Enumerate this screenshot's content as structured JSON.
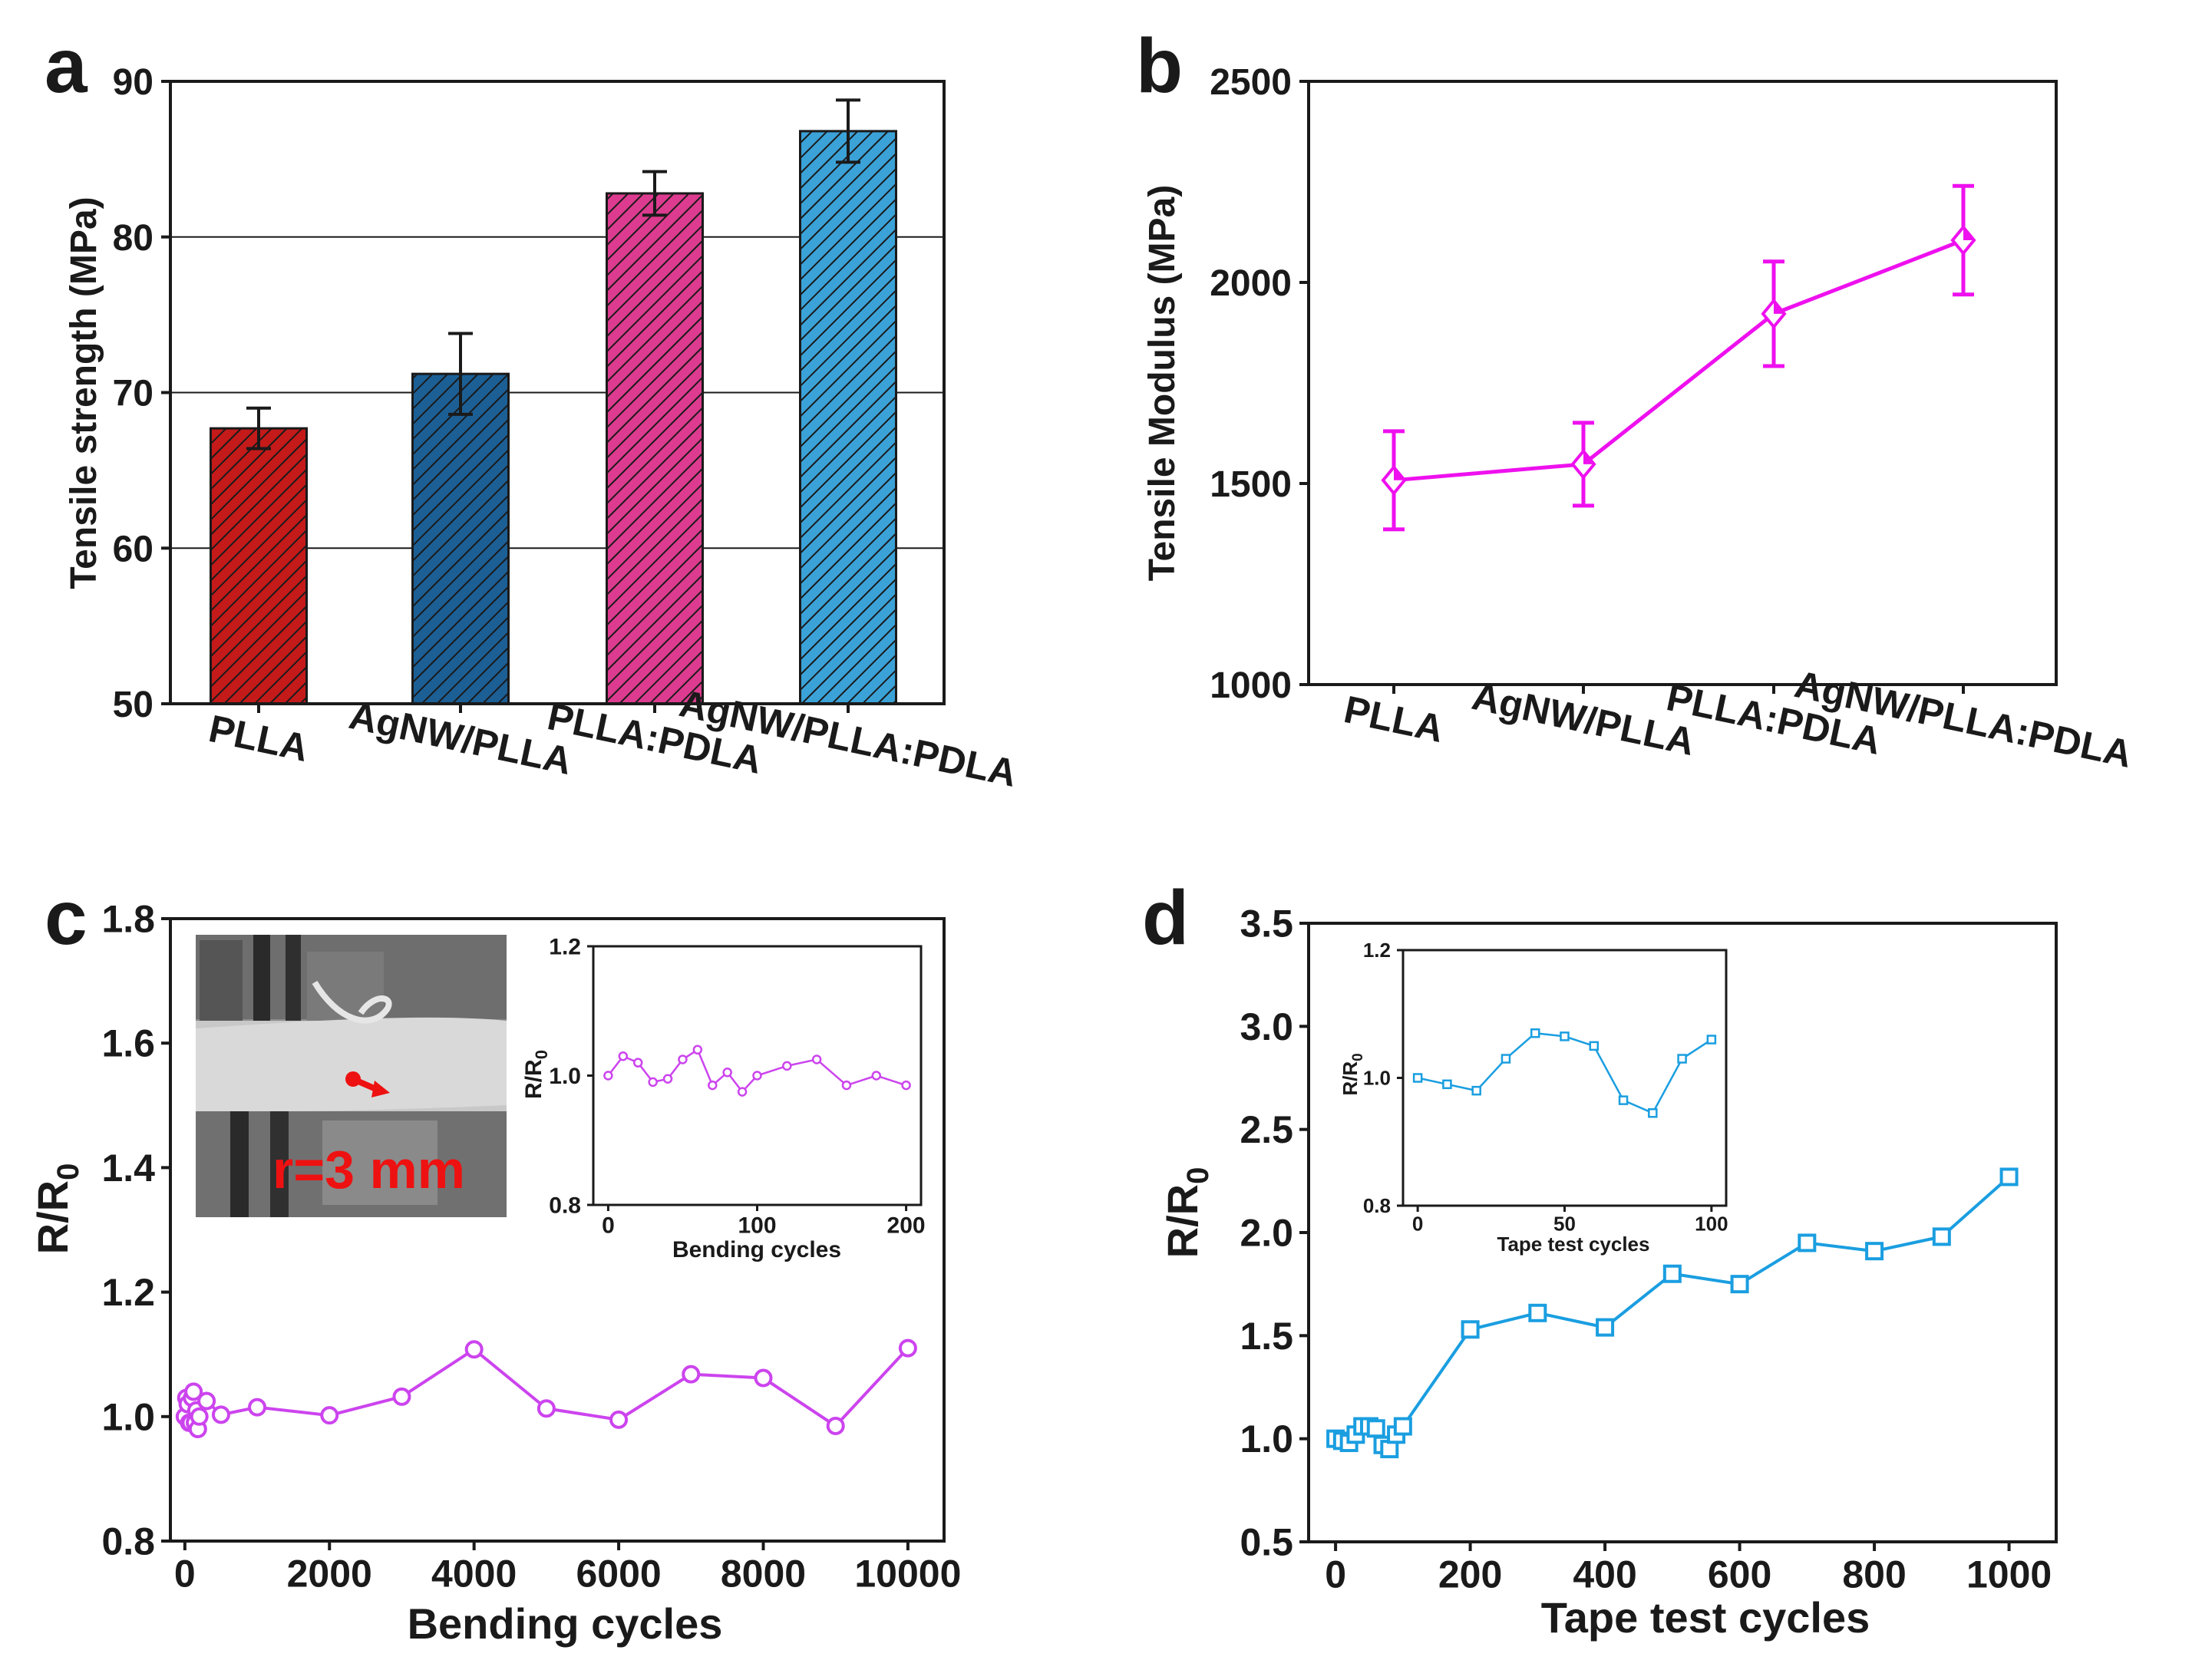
{
  "chart_data": [
    {
      "panel": "a",
      "type": "bar",
      "categories": [
        "PLLA",
        "AgNW/PLLA",
        "PLLA:PDLA",
        "AgNW/PLLA:PDLA"
      ],
      "values": [
        67.7,
        71.2,
        82.8,
        86.8
      ],
      "errors": [
        1.3,
        2.6,
        1.4,
        2.0
      ],
      "colors": [
        "#c41a1a",
        "#1c5f95",
        "#dd3b8f",
        "#3ba2d8"
      ],
      "hatch": "diagonal",
      "xlabel": "",
      "ylabel": "Tensile strength (MPa)",
      "ylim": [
        50,
        90
      ],
      "yticks": [
        50,
        60,
        70,
        80,
        90
      ],
      "grid": true
    },
    {
      "panel": "b",
      "type": "line",
      "categories": [
        "PLLA",
        "AgNW/PLLA",
        "PLLA:PDLA",
        "AgNW/PLLA:PDLA"
      ],
      "values": [
        1508,
        1548,
        1922,
        2105
      ],
      "errors": [
        122,
        103,
        130,
        135
      ],
      "color": "#ee10ee",
      "marker": "diamond",
      "xlabel": "",
      "ylabel": "Tensile Modulus (MPa)",
      "ylim": [
        1000,
        2500
      ],
      "yticks": [
        1000,
        1500,
        2000,
        2500
      ],
      "grid": false
    },
    {
      "panel": "c",
      "type": "line",
      "x": [
        0,
        20,
        40,
        60,
        80,
        100,
        120,
        140,
        160,
        180,
        200,
        300,
        500,
        1000,
        2000,
        3000,
        4000,
        5000,
        6000,
        7000,
        8000,
        9000,
        10000
      ],
      "y": [
        1.0,
        1.03,
        1.02,
        0.99,
        0.99,
        1.03,
        1.04,
        0.99,
        1.01,
        0.98,
        1.0,
        1.025,
        1.003,
        1.015,
        1.002,
        1.032,
        1.108,
        1.013,
        0.995,
        1.068,
        1.062,
        0.985,
        1.11
      ],
      "color": "#cc44ee",
      "marker": "circle",
      "xlabel": "Bending cycles",
      "ylabel_main": "R/R",
      "ylabel_sub": "0",
      "xlim": [
        -200,
        10500
      ],
      "xticks": [
        0,
        2000,
        4000,
        6000,
        8000,
        10000
      ],
      "ylim": [
        0.8,
        1.8
      ],
      "yticks": [
        "0.8",
        "1.0",
        "1.2",
        "1.4",
        "1.6",
        "1.8"
      ],
      "inset": {
        "x": [
          0,
          10,
          20,
          30,
          40,
          50,
          60,
          70,
          80,
          90,
          100,
          120,
          140,
          160,
          180,
          200
        ],
        "y": [
          1.0,
          1.03,
          1.02,
          0.99,
          0.995,
          1.025,
          1.04,
          0.985,
          1.005,
          0.975,
          1.0,
          1.015,
          1.025,
          0.985,
          1.0,
          0.985
        ],
        "xlabel": "Bending cycles",
        "ylabel_main": "R/R",
        "ylabel_sub": "0",
        "xlim": [
          -10,
          210
        ],
        "xticks": [
          0,
          100,
          200
        ],
        "ylim": [
          0.8,
          1.2
        ],
        "yticks": [
          "0.8",
          "1.0",
          "1.2"
        ]
      },
      "photo_annotation": "r=3 mm"
    },
    {
      "panel": "d",
      "type": "line",
      "x": [
        0,
        10,
        20,
        30,
        40,
        50,
        60,
        70,
        80,
        90,
        100,
        200,
        300,
        400,
        500,
        600,
        700,
        800,
        900,
        1000
      ],
      "y": [
        1.0,
        0.99,
        0.98,
        1.02,
        1.06,
        1.06,
        1.05,
        0.97,
        0.95,
        1.02,
        1.06,
        1.53,
        1.61,
        1.54,
        1.8,
        1.75,
        1.95,
        1.91,
        1.98,
        2.27
      ],
      "color": "#1a9ee0",
      "marker": "square",
      "xlabel": "Tape test cycles",
      "ylabel_main": "R/R",
      "ylabel_sub": "0",
      "xlim": [
        -40,
        1070
      ],
      "xticks": [
        0,
        200,
        400,
        600,
        800,
        1000
      ],
      "ylim": [
        0.5,
        3.5
      ],
      "yticks": [
        "0.5",
        "1.0",
        "1.5",
        "2.0",
        "2.5",
        "3.0",
        "3.5"
      ],
      "inset": {
        "x": [
          0,
          10,
          20,
          30,
          40,
          50,
          60,
          70,
          80,
          90,
          100
        ],
        "y": [
          1.0,
          0.99,
          0.98,
          1.03,
          1.07,
          1.065,
          1.05,
          0.965,
          0.945,
          1.03,
          1.06
        ],
        "xlabel": "Tape test cycles",
        "ylabel_main": "R/R",
        "ylabel_sub": "0",
        "xlim": [
          -5,
          105
        ],
        "xticks": [
          0,
          50,
          100
        ],
        "ylim": [
          0.8,
          1.2
        ],
        "yticks": [
          "0.8",
          "1.0",
          "1.2"
        ]
      }
    }
  ],
  "panel_labels": [
    "a",
    "b",
    "c",
    "d"
  ]
}
